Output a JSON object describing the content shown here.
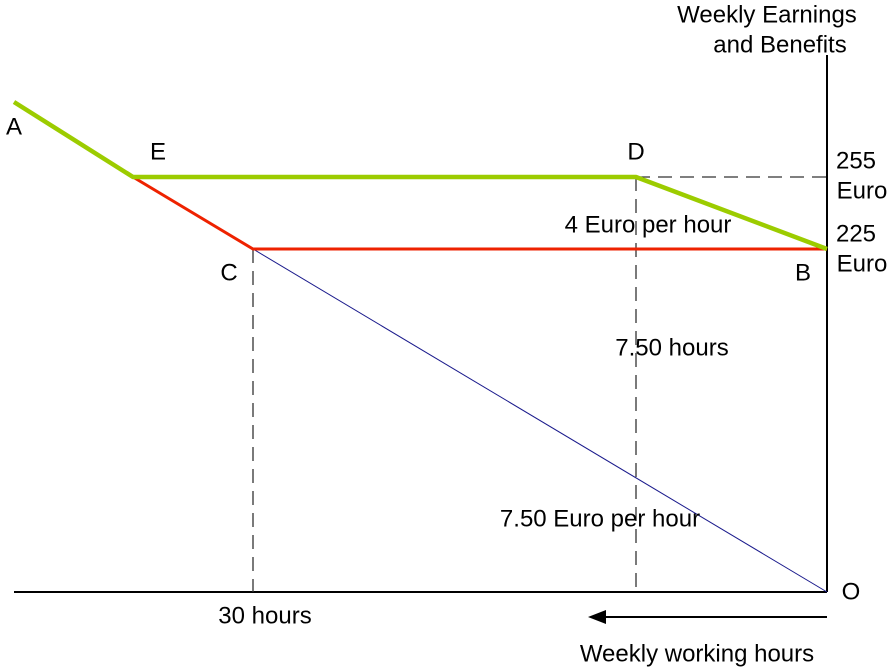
{
  "axes": {
    "y_title": [
      "Weekly Earnings",
      "and Benefits"
    ],
    "x_title": "Weekly working hours",
    "origin": "O"
  },
  "points": [
    "A",
    "B",
    "C",
    "D",
    "E"
  ],
  "y_labels": [
    {
      "amount": "255",
      "unit": "Euro"
    },
    {
      "amount": "225",
      "unit": "Euro"
    }
  ],
  "annotations": [
    "4 Euro per hour",
    "7.50 hours",
    "7.50 Euro per hour",
    "30 hours"
  ]
}
